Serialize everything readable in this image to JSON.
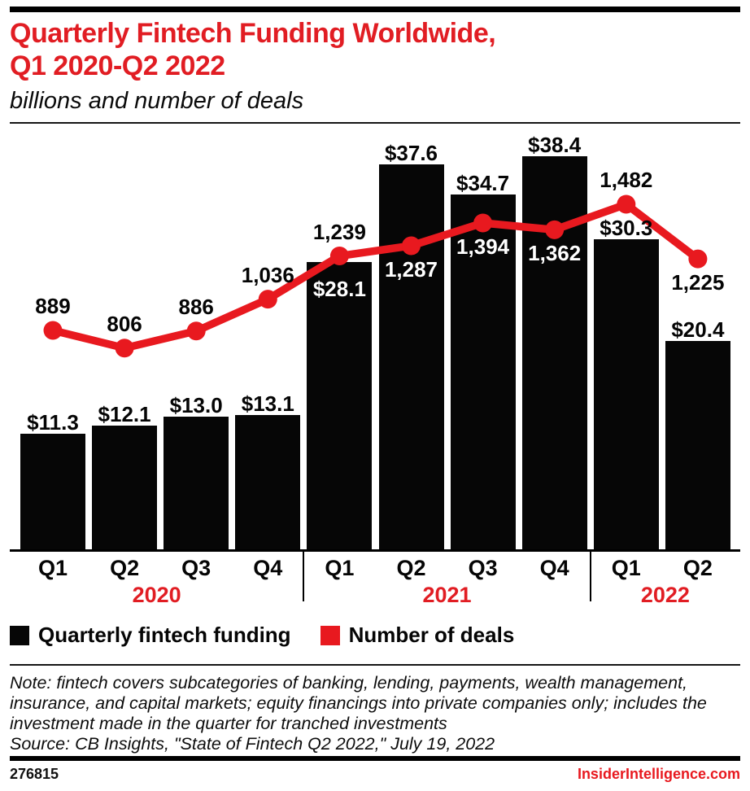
{
  "header": {
    "title_line1": "Quarterly Fintech Funding Worldwide,",
    "title_line2": "Q1 2020-Q2 2022",
    "subtitle": "billions and number of deals"
  },
  "chart_data": {
    "type": "combo-bar-line",
    "categories": [
      "Q1",
      "Q2",
      "Q3",
      "Q4",
      "Q1",
      "Q2",
      "Q3",
      "Q4",
      "Q1",
      "Q2"
    ],
    "year_groups": [
      {
        "label": "2020",
        "quarters": 4
      },
      {
        "label": "2021",
        "quarters": 4
      },
      {
        "label": "2022",
        "quarters": 2
      }
    ],
    "series": [
      {
        "name": "Quarterly fintech funding",
        "type": "bar",
        "unit": "USD billions",
        "values": [
          11.3,
          12.1,
          13.0,
          13.1,
          28.1,
          37.6,
          34.7,
          38.4,
          30.3,
          20.4
        ],
        "labels": [
          "$11.3",
          "$12.1",
          "$13.0",
          "$13.1",
          "$28.1",
          "$37.6",
          "$34.7",
          "$38.4",
          "$30.3",
          "$20.4"
        ],
        "label_placement": [
          "above",
          "above",
          "above",
          "above",
          "inside",
          "above",
          "above",
          "above",
          "above",
          "above"
        ],
        "color": "#060606"
      },
      {
        "name": "Number of deals",
        "type": "line",
        "unit": "deals",
        "values": [
          889,
          806,
          886,
          1036,
          1239,
          1287,
          1394,
          1362,
          1482,
          1225
        ],
        "labels": [
          "889",
          "806",
          "886",
          "1,036",
          "1,239",
          "1,287",
          "1,394",
          "1,362",
          "1,482",
          "1,225"
        ],
        "label_placement": [
          "above",
          "above",
          "above",
          "above",
          "above",
          "below-inside",
          "below-inside",
          "below-inside",
          "above",
          "below"
        ],
        "color": "#e8191f"
      }
    ],
    "title": "Quarterly Fintech Funding Worldwide, Q1 2020-Q2 2022",
    "subtitle": "billions and number of deals",
    "xlabel": "",
    "ylabel": "",
    "ylim_bars": [
      0,
      41
    ],
    "ylim_line": [
      600,
      1600
    ],
    "grid": false,
    "legend_position": "bottom"
  },
  "legend": {
    "items": [
      {
        "label": "Quarterly fintech funding",
        "color": "#060606"
      },
      {
        "label": "Number of deals",
        "color": "#e8191f"
      }
    ]
  },
  "notes": {
    "lines": [
      "Note: fintech covers subcategories of banking, lending, payments, wealth management,",
      "insurance, and capital markets; equity financings into private companies only; includes the",
      "investment made in the quarter for tranched investments",
      "Source: CB Insights, \"State of Fintech Q2 2022,\" July 19, 2022"
    ]
  },
  "footer": {
    "code": "276815",
    "site": "InsiderIntelligence.com"
  },
  "colors": {
    "brand_red": "#e8191f",
    "title_red": "#e11d23",
    "bar_black": "#060606",
    "background": "#ffffff"
  }
}
